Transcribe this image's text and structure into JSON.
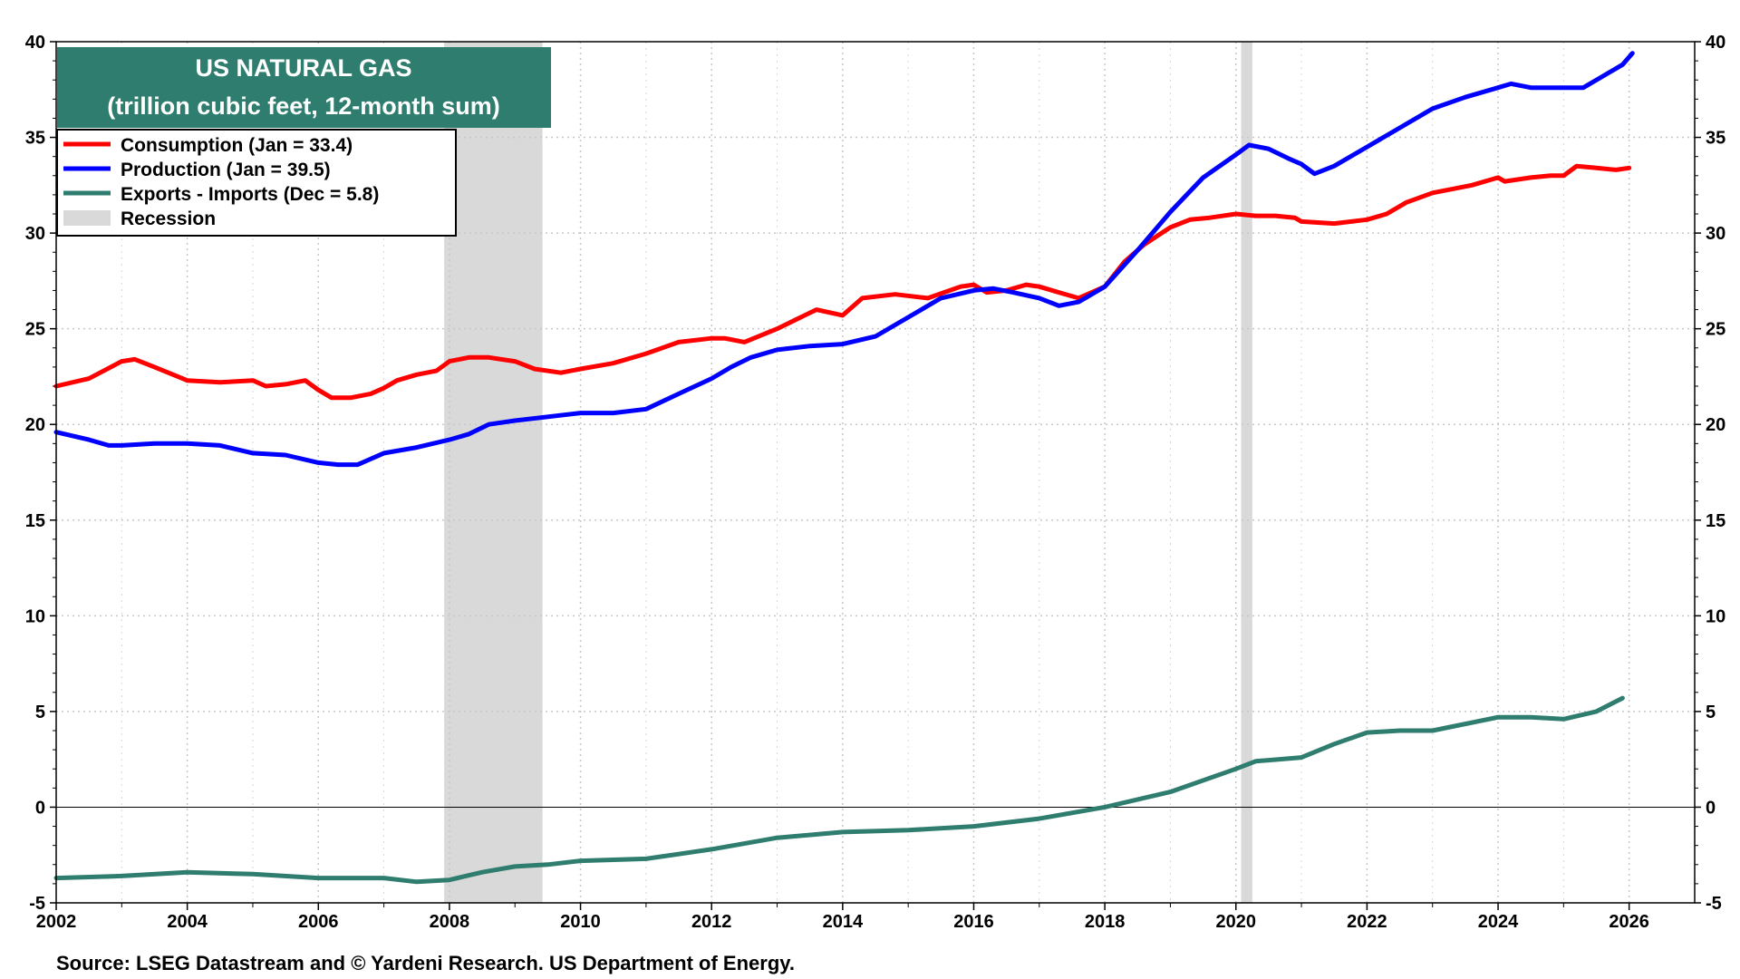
{
  "chart_data": {
    "type": "line",
    "title": "US NATURAL GAS",
    "subtitle": "(trillion cubic feet, 12-month sum)",
    "source": "Source: LSEG Datastream and © Yardeni Research. US Department of Energy.",
    "xlim": [
      2002,
      2027
    ],
    "ylim": [
      -5,
      40
    ],
    "x_ticks": [
      "2002",
      "2004",
      "2006",
      "2008",
      "2010",
      "2012",
      "2014",
      "2016",
      "2018",
      "2020",
      "2022",
      "2024",
      "2026"
    ],
    "y_ticks": [
      "40",
      "35",
      "30",
      "25",
      "20",
      "15",
      "10",
      "5",
      "0",
      "-5"
    ],
    "grid": true,
    "legend_placement": "top-left",
    "zero_line": true,
    "recessions": [
      {
        "start": 2007.92,
        "end": 2009.42
      },
      {
        "start": 2020.08,
        "end": 2020.25
      }
    ],
    "legend": [
      {
        "label": "Consumption (Jan = 33.4)",
        "color": "#ff0000",
        "kind": "line"
      },
      {
        "label": "Production (Jan = 39.5)",
        "color": "#0000ff",
        "kind": "line"
      },
      {
        "label": "Exports - Imports (Dec = 5.8)",
        "color": "#2e7d6e",
        "kind": "line"
      },
      {
        "label": "Recession",
        "color": "#d9d9d9",
        "kind": "box"
      }
    ],
    "series": [
      {
        "name": "Consumption",
        "color": "#ff0000",
        "points": [
          [
            2002.0,
            22.0
          ],
          [
            2002.5,
            22.4
          ],
          [
            2003.0,
            23.3
          ],
          [
            2003.2,
            23.4
          ],
          [
            2003.5,
            23.0
          ],
          [
            2004.0,
            22.3
          ],
          [
            2004.5,
            22.2
          ],
          [
            2005.0,
            22.3
          ],
          [
            2005.2,
            22.0
          ],
          [
            2005.5,
            22.1
          ],
          [
            2005.8,
            22.3
          ],
          [
            2006.0,
            21.8
          ],
          [
            2006.2,
            21.4
          ],
          [
            2006.5,
            21.4
          ],
          [
            2006.8,
            21.6
          ],
          [
            2007.0,
            21.9
          ],
          [
            2007.2,
            22.3
          ],
          [
            2007.5,
            22.6
          ],
          [
            2007.8,
            22.8
          ],
          [
            2008.0,
            23.3
          ],
          [
            2008.3,
            23.5
          ],
          [
            2008.6,
            23.5
          ],
          [
            2009.0,
            23.3
          ],
          [
            2009.3,
            22.9
          ],
          [
            2009.7,
            22.7
          ],
          [
            2010.0,
            22.9
          ],
          [
            2010.5,
            23.2
          ],
          [
            2011.0,
            23.7
          ],
          [
            2011.5,
            24.3
          ],
          [
            2012.0,
            24.5
          ],
          [
            2012.2,
            24.5
          ],
          [
            2012.5,
            24.3
          ],
          [
            2013.0,
            25.0
          ],
          [
            2013.3,
            25.5
          ],
          [
            2013.6,
            26.0
          ],
          [
            2014.0,
            25.7
          ],
          [
            2014.3,
            26.6
          ],
          [
            2014.8,
            26.8
          ],
          [
            2015.3,
            26.6
          ],
          [
            2015.8,
            27.2
          ],
          [
            2016.0,
            27.3
          ],
          [
            2016.2,
            26.9
          ],
          [
            2016.5,
            27.0
          ],
          [
            2016.8,
            27.3
          ],
          [
            2017.0,
            27.2
          ],
          [
            2017.3,
            26.9
          ],
          [
            2017.6,
            26.6
          ],
          [
            2018.0,
            27.2
          ],
          [
            2018.3,
            28.5
          ],
          [
            2018.6,
            29.4
          ],
          [
            2019.0,
            30.3
          ],
          [
            2019.3,
            30.7
          ],
          [
            2019.6,
            30.8
          ],
          [
            2020.0,
            31.0
          ],
          [
            2020.3,
            30.9
          ],
          [
            2020.6,
            30.9
          ],
          [
            2020.9,
            30.8
          ],
          [
            2021.0,
            30.6
          ],
          [
            2021.5,
            30.5
          ],
          [
            2022.0,
            30.7
          ],
          [
            2022.3,
            31.0
          ],
          [
            2022.6,
            31.6
          ],
          [
            2023.0,
            32.1
          ],
          [
            2023.3,
            32.3
          ],
          [
            2023.6,
            32.5
          ],
          [
            2024.0,
            32.9
          ],
          [
            2024.1,
            32.7
          ],
          [
            2024.5,
            32.9
          ],
          [
            2024.8,
            33.0
          ],
          [
            2025.0,
            33.0
          ],
          [
            2025.2,
            33.5
          ],
          [
            2025.5,
            33.4
          ],
          [
            2025.8,
            33.3
          ],
          [
            2026.0,
            33.4
          ]
        ]
      },
      {
        "name": "Production",
        "color": "#0000ff",
        "points": [
          [
            2002.0,
            19.6
          ],
          [
            2002.5,
            19.2
          ],
          [
            2002.8,
            18.9
          ],
          [
            2003.0,
            18.9
          ],
          [
            2003.5,
            19.0
          ],
          [
            2004.0,
            19.0
          ],
          [
            2004.5,
            18.9
          ],
          [
            2005.0,
            18.5
          ],
          [
            2005.5,
            18.4
          ],
          [
            2006.0,
            18.0
          ],
          [
            2006.3,
            17.9
          ],
          [
            2006.6,
            17.9
          ],
          [
            2007.0,
            18.5
          ],
          [
            2007.5,
            18.8
          ],
          [
            2008.0,
            19.2
          ],
          [
            2008.3,
            19.5
          ],
          [
            2008.6,
            20.0
          ],
          [
            2009.0,
            20.2
          ],
          [
            2009.5,
            20.4
          ],
          [
            2010.0,
            20.6
          ],
          [
            2010.5,
            20.6
          ],
          [
            2011.0,
            20.8
          ],
          [
            2011.5,
            21.6
          ],
          [
            2012.0,
            22.4
          ],
          [
            2012.3,
            23.0
          ],
          [
            2012.6,
            23.5
          ],
          [
            2013.0,
            23.9
          ],
          [
            2013.5,
            24.1
          ],
          [
            2014.0,
            24.2
          ],
          [
            2014.5,
            24.6
          ],
          [
            2015.0,
            25.6
          ],
          [
            2015.5,
            26.6
          ],
          [
            2016.0,
            27.0
          ],
          [
            2016.3,
            27.1
          ],
          [
            2016.6,
            26.9
          ],
          [
            2017.0,
            26.6
          ],
          [
            2017.3,
            26.2
          ],
          [
            2017.6,
            26.4
          ],
          [
            2018.0,
            27.2
          ],
          [
            2018.5,
            29.1
          ],
          [
            2019.0,
            31.1
          ],
          [
            2019.5,
            32.9
          ],
          [
            2020.0,
            34.1
          ],
          [
            2020.2,
            34.6
          ],
          [
            2020.5,
            34.4
          ],
          [
            2020.8,
            33.9
          ],
          [
            2021.0,
            33.6
          ],
          [
            2021.2,
            33.1
          ],
          [
            2021.5,
            33.5
          ],
          [
            2022.0,
            34.5
          ],
          [
            2022.5,
            35.5
          ],
          [
            2023.0,
            36.5
          ],
          [
            2023.5,
            37.1
          ],
          [
            2024.0,
            37.6
          ],
          [
            2024.2,
            37.8
          ],
          [
            2024.5,
            37.6
          ],
          [
            2025.0,
            37.6
          ],
          [
            2025.3,
            37.6
          ],
          [
            2025.6,
            38.2
          ],
          [
            2025.9,
            38.8
          ],
          [
            2026.0,
            39.2
          ],
          [
            2026.05,
            39.4
          ]
        ]
      },
      {
        "name": "Exports - Imports",
        "color": "#2e7d6e",
        "points": [
          [
            2002.0,
            -3.7
          ],
          [
            2003.0,
            -3.6
          ],
          [
            2004.0,
            -3.4
          ],
          [
            2005.0,
            -3.5
          ],
          [
            2006.0,
            -3.7
          ],
          [
            2007.0,
            -3.7
          ],
          [
            2007.5,
            -3.9
          ],
          [
            2008.0,
            -3.8
          ],
          [
            2008.5,
            -3.4
          ],
          [
            2009.0,
            -3.1
          ],
          [
            2009.5,
            -3.0
          ],
          [
            2010.0,
            -2.8
          ],
          [
            2011.0,
            -2.7
          ],
          [
            2012.0,
            -2.2
          ],
          [
            2013.0,
            -1.6
          ],
          [
            2014.0,
            -1.3
          ],
          [
            2015.0,
            -1.2
          ],
          [
            2016.0,
            -1.0
          ],
          [
            2017.0,
            -0.6
          ],
          [
            2018.0,
            0.0
          ],
          [
            2019.0,
            0.8
          ],
          [
            2020.0,
            2.0
          ],
          [
            2020.3,
            2.4
          ],
          [
            2021.0,
            2.6
          ],
          [
            2021.5,
            3.3
          ],
          [
            2022.0,
            3.9
          ],
          [
            2022.5,
            4.0
          ],
          [
            2023.0,
            4.0
          ],
          [
            2024.0,
            4.7
          ],
          [
            2024.5,
            4.7
          ],
          [
            2025.0,
            4.6
          ],
          [
            2025.5,
            5.0
          ],
          [
            2025.9,
            5.7
          ]
        ]
      }
    ]
  }
}
